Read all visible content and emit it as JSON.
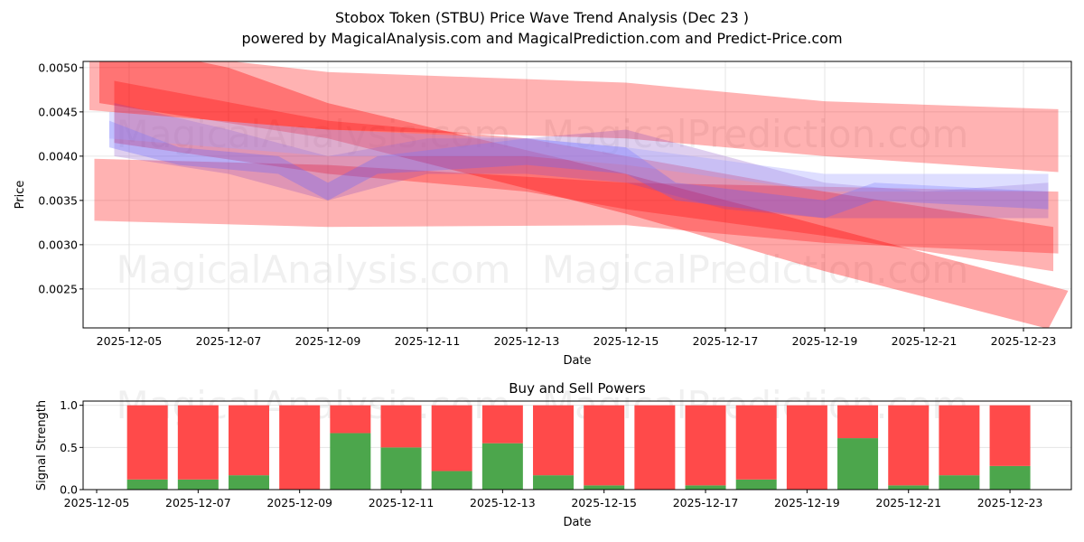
{
  "title": "Stobox Token (STBU) Price Wave Trend Analysis (Dec 23 )",
  "subtitle": "powered by MagicalAnalysis.com and MagicalPrediction.com and Predict-Price.com",
  "watermarks": [
    "MagicalAnalysis.com",
    "MagicalPrediction.com"
  ],
  "chart_data": [
    {
      "type": "area",
      "title": "",
      "xlabel": "Date",
      "ylabel": "Price",
      "x_ticks": [
        "2025-12-05",
        "2025-12-07",
        "2025-12-09",
        "2025-12-11",
        "2025-12-13",
        "2025-12-15",
        "2025-12-17",
        "2025-12-19",
        "2025-12-21",
        "2025-12-23"
      ],
      "y_ticks": [
        "0.0025",
        "0.0030",
        "0.0035",
        "0.0040",
        "0.0045",
        "0.0050"
      ],
      "y_tick_values": [
        0.0025,
        0.003,
        0.0035,
        0.004,
        0.0045,
        0.005
      ],
      "xlim_days_from_2025_12_05": [
        -0.95,
        18.95
      ],
      "ylim": [
        0.00206,
        0.00507
      ],
      "grid": true,
      "bands": [
        {
          "name": "upper-wide-band",
          "color": "#ff0000",
          "opacity": 0.3,
          "upper": [
            [
              -0.8,
              0.00525
            ],
            [
              4,
              0.00495
            ],
            [
              10,
              0.00483
            ],
            [
              14,
              0.00462
            ],
            [
              18.7,
              0.00453
            ]
          ],
          "lower": [
            [
              -0.8,
              0.00452
            ],
            [
              4,
              0.0043
            ],
            [
              10,
              0.0042
            ],
            [
              14,
              0.004
            ],
            [
              18.7,
              0.00382
            ]
          ]
        },
        {
          "name": "lower-wide-band",
          "color": "#ff0000",
          "opacity": 0.3,
          "upper": [
            [
              -0.7,
              0.00397
            ],
            [
              4,
              0.0039
            ],
            [
              10,
              0.0037
            ],
            [
              18.7,
              0.0036
            ]
          ],
          "lower": [
            [
              -0.7,
              0.00327
            ],
            [
              4,
              0.0032
            ],
            [
              10,
              0.00322
            ],
            [
              14,
              0.00302
            ],
            [
              18.7,
              0.0029
            ]
          ]
        },
        {
          "name": "steep-descending-band",
          "color": "#ff0000",
          "opacity": 0.35,
          "upper": [
            [
              -0.6,
              0.0053
            ],
            [
              2,
              0.005
            ],
            [
              4,
              0.0046
            ],
            [
              10,
              0.0038
            ],
            [
              18.9,
              0.00248
            ]
          ],
          "lower": [
            [
              -0.6,
              0.0046
            ],
            [
              4,
              0.0042
            ],
            [
              10,
              0.00335
            ],
            [
              14,
              0.0027
            ],
            [
              18.5,
              0.00205
            ]
          ]
        },
        {
          "name": "descending-band-2",
          "color": "#ff0000",
          "opacity": 0.3,
          "upper": [
            [
              -0.3,
              0.00485
            ],
            [
              4,
              0.0044
            ],
            [
              8,
              0.0042
            ],
            [
              10,
              0.004
            ],
            [
              14,
              0.0036
            ],
            [
              18.6,
              0.0032
            ]
          ],
          "lower": [
            [
              -0.3,
              0.00415
            ],
            [
              4,
              0.0038
            ],
            [
              8,
              0.0036
            ],
            [
              10,
              0.0034
            ],
            [
              14,
              0.0031
            ],
            [
              18.6,
              0.0027
            ]
          ]
        },
        {
          "name": "purple-band-1",
          "color": "#8040c0",
          "opacity": 0.25,
          "upper": [
            [
              -0.3,
              0.0046
            ],
            [
              2,
              0.0043
            ],
            [
              4,
              0.004
            ],
            [
              6,
              0.0042
            ],
            [
              8,
              0.0042
            ],
            [
              10,
              0.0043
            ],
            [
              12,
              0.004
            ],
            [
              14,
              0.0037
            ],
            [
              16,
              0.0036
            ],
            [
              18.5,
              0.0037
            ]
          ],
          "lower": [
            [
              -0.3,
              0.004
            ],
            [
              2,
              0.0038
            ],
            [
              4,
              0.0035
            ],
            [
              6,
              0.0038
            ],
            [
              8,
              0.0038
            ],
            [
              10,
              0.0037
            ],
            [
              12,
              0.0034
            ],
            [
              14,
              0.0033
            ],
            [
              16,
              0.0033
            ],
            [
              18.5,
              0.0033
            ]
          ]
        },
        {
          "name": "blue-band",
          "color": "#6060ff",
          "opacity": 0.3,
          "upper": [
            [
              -0.4,
              0.0044
            ],
            [
              1,
              0.0041
            ],
            [
              3,
              0.004
            ],
            [
              4,
              0.0037
            ],
            [
              5,
              0.004
            ],
            [
              8,
              0.0042
            ],
            [
              10,
              0.0041
            ],
            [
              11,
              0.0037
            ],
            [
              14,
              0.0035
            ],
            [
              15,
              0.0037
            ],
            [
              18.5,
              0.0036
            ]
          ],
          "lower": [
            [
              -0.4,
              0.0041
            ],
            [
              1,
              0.0039
            ],
            [
              3,
              0.0038
            ],
            [
              4,
              0.0035
            ],
            [
              5,
              0.0038
            ],
            [
              8,
              0.0039
            ],
            [
              10,
              0.0038
            ],
            [
              11,
              0.0035
            ],
            [
              14,
              0.0033
            ],
            [
              15,
              0.0035
            ],
            [
              18.5,
              0.0034
            ]
          ]
        },
        {
          "name": "light-blue-band",
          "color": "#a0a0ff",
          "opacity": 0.35,
          "upper": [
            [
              -0.4,
              0.0045
            ],
            [
              4,
              0.0043
            ],
            [
              8,
              0.0042
            ],
            [
              10,
              0.0041
            ],
            [
              14,
              0.0038
            ],
            [
              18.5,
              0.0038
            ]
          ],
          "lower": [
            [
              -0.4,
              0.0042
            ],
            [
              4,
              0.004
            ],
            [
              8,
              0.004
            ],
            [
              10,
              0.0039
            ],
            [
              14,
              0.0036
            ],
            [
              18.5,
              0.0036
            ]
          ]
        }
      ]
    },
    {
      "type": "bar",
      "title": "Buy and Sell Powers",
      "xlabel": "Date",
      "ylabel": "Signal Strength",
      "x_ticks": [
        "2025-12-05",
        "2025-12-07",
        "2025-12-09",
        "2025-12-11",
        "2025-12-13",
        "2025-12-15",
        "2025-12-17",
        "2025-12-19",
        "2025-12-21",
        "2025-12-23"
      ],
      "y_ticks": [
        "0.0",
        "0.5",
        "1.0"
      ],
      "y_tick_values": [
        0,
        0.5,
        1
      ],
      "ylim": [
        0,
        1.05
      ],
      "categories": [
        "2025-12-06",
        "2025-12-07",
        "2025-12-08",
        "2025-12-09",
        "2025-12-10",
        "2025-12-11",
        "2025-12-12",
        "2025-12-13",
        "2025-12-14",
        "2025-12-15",
        "2025-12-16",
        "2025-12-17",
        "2025-12-18",
        "2025-12-19",
        "2025-12-20",
        "2025-12-21",
        "2025-12-22",
        "2025-12-23"
      ],
      "series": [
        {
          "name": "Buy",
          "color": "#4ca64c",
          "values": [
            0.12,
            0.12,
            0.17,
            0.0,
            0.67,
            0.5,
            0.22,
            0.55,
            0.17,
            0.05,
            0.0,
            0.05,
            0.12,
            0.0,
            0.61,
            0.05,
            0.17,
            0.28
          ]
        },
        {
          "name": "Sell",
          "color": "#ff4a4a",
          "values": [
            0.88,
            0.88,
            0.83,
            1.0,
            0.33,
            0.5,
            0.78,
            0.45,
            0.83,
            0.95,
            1.0,
            0.95,
            0.88,
            1.0,
            0.39,
            0.95,
            0.83,
            0.72
          ]
        }
      ]
    }
  ]
}
